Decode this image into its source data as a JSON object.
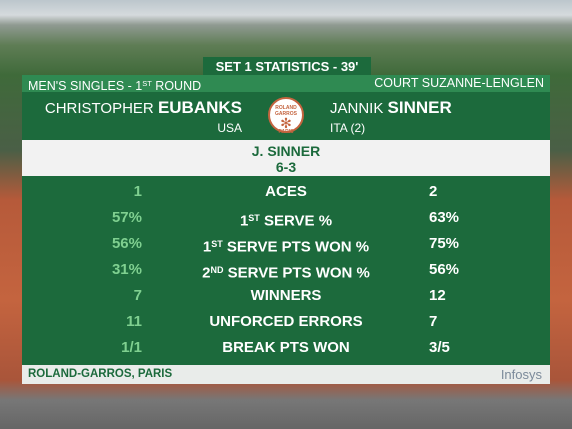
{
  "header": {
    "title": "SET 1 STATISTICS - 39'",
    "round": {
      "pre": "MEN'S SINGLES - 1",
      "sup": "ST",
      "post": " ROUND"
    },
    "court": "COURT SUZANNE-LENGLEN"
  },
  "players": [
    {
      "first": "CHRISTOPHER",
      "last": "EUBANKS",
      "country": "USA"
    },
    {
      "first": "JANNIK",
      "last": "SINNER",
      "country": "ITA (2)"
    }
  ],
  "logo": {
    "top": "ROLAND GARROS",
    "bottom": "PARIS"
  },
  "result": {
    "winner": "J. SINNER",
    "score": "6-3"
  },
  "stats": [
    {
      "pre": "ACES",
      "p1": "1",
      "p2": "2"
    },
    {
      "pre": "1",
      "sup": "ST",
      "post": " SERVE %",
      "p1": "57%",
      "p2": "63%"
    },
    {
      "pre": "1",
      "sup": "ST",
      "post": " SERVE PTS WON %",
      "p1": "56%",
      "p2": "75%"
    },
    {
      "pre": "2",
      "sup": "ND",
      "post": " SERVE PTS WON %",
      "p1": "31%",
      "p2": "56%"
    },
    {
      "pre": "WINNERS",
      "p1": "7",
      "p2": "12"
    },
    {
      "pre": "UNFORCED ERRORS",
      "p1": "11",
      "p2": "7"
    },
    {
      "pre": "BREAK PTS WON",
      "p1": "1/1",
      "p2": "3/5"
    }
  ],
  "footer": {
    "location": "ROLAND-GARROS, PARIS",
    "sponsor": "Infosys"
  }
}
